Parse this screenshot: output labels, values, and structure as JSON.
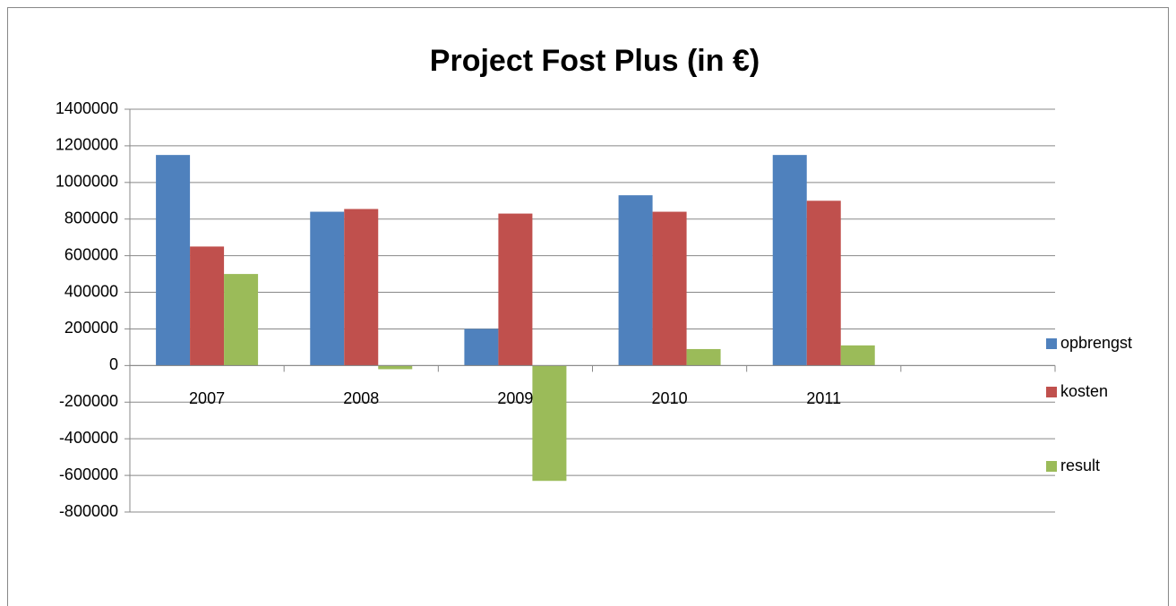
{
  "chart_data": {
    "type": "bar",
    "title": "Project Fost Plus (in €)",
    "categories": [
      "2007",
      "2008",
      "2009",
      "2010",
      "2011",
      null
    ],
    "series": [
      {
        "name": "opbrengst",
        "color": "#4f81bd",
        "values": [
          1150000,
          840000,
          200000,
          930000,
          1150000,
          null
        ]
      },
      {
        "name": "kosten",
        "color": "#c0504d",
        "values": [
          650000,
          855000,
          830000,
          840000,
          900000,
          null
        ]
      },
      {
        "name": "result",
        "color": "#9bbb59",
        "values": [
          500000,
          -20000,
          -630000,
          90000,
          110000,
          null
        ]
      }
    ],
    "ylim": [
      -800000,
      1400000
    ],
    "yticks": [
      -800000,
      -600000,
      -400000,
      -200000,
      0,
      200000,
      400000,
      600000,
      800000,
      1000000,
      1200000,
      1400000
    ],
    "grid": true,
    "legend": "right"
  }
}
